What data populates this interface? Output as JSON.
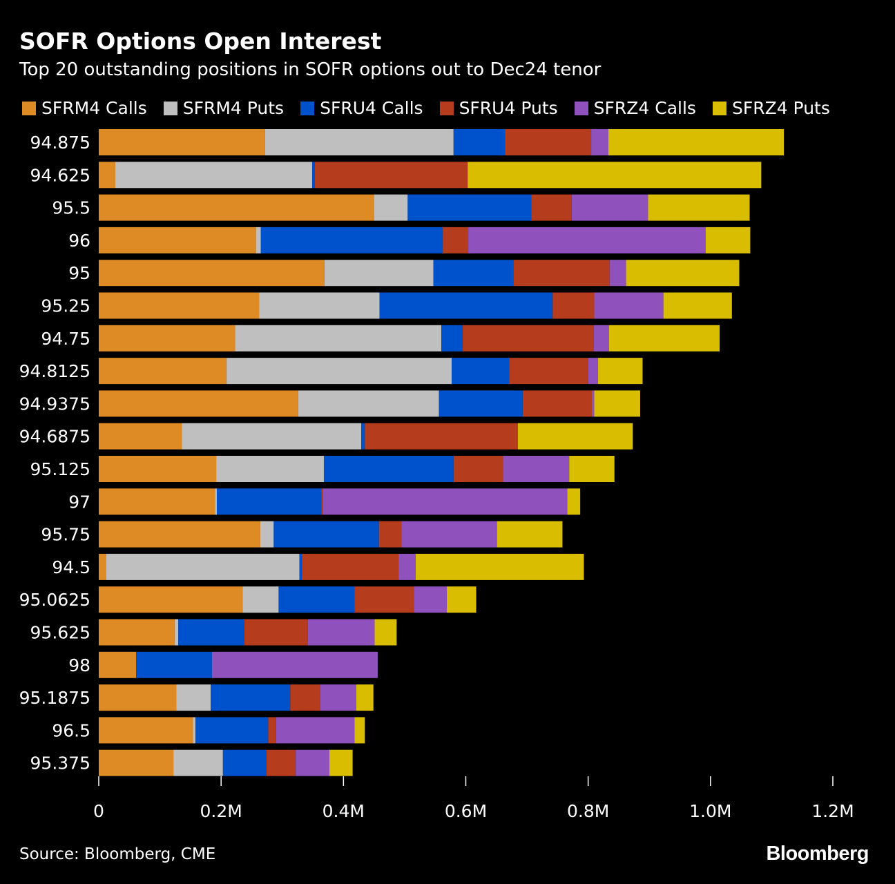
{
  "chart_data": {
    "type": "bar",
    "orientation": "horizontal",
    "stacked": true,
    "title": "SOFR Options Open Interest",
    "subtitle": "Top 20 outstanding positions in SOFR options out to Dec24 tenor",
    "categories": [
      "94.875",
      "94.625",
      "95.5",
      "96",
      "95",
      "95.25",
      "94.75",
      "94.8125",
      "94.9375",
      "94.6875",
      "95.125",
      "97",
      "95.75",
      "94.5",
      "95.0625",
      "95.625",
      "98",
      "95.1875",
      "96.5",
      "95.375"
    ],
    "series": [
      {
        "name": "SFRM4 Calls",
        "color": "#DE8A25",
        "values": [
          272000,
          27000,
          450000,
          257000,
          369000,
          262000,
          223000,
          209000,
          326000,
          136000,
          192000,
          190000,
          264000,
          12000,
          235000,
          124000,
          61000,
          127000,
          154000,
          122000
        ]
      },
      {
        "name": "SFRM4 Puts",
        "color": "#BFBFBF",
        "values": [
          308000,
          322000,
          55000,
          8000,
          178000,
          197000,
          337000,
          368000,
          230000,
          293000,
          176000,
          3000,
          22000,
          316000,
          59000,
          6000,
          0,
          56000,
          4000,
          81000
        ]
      },
      {
        "name": "SFRU4 Calls",
        "color": "#0052CC",
        "values": [
          84000,
          4000,
          202000,
          297000,
          131000,
          283000,
          35000,
          94000,
          137000,
          6000,
          212000,
          171000,
          172000,
          4000,
          124000,
          108000,
          124000,
          130000,
          119000,
          71000
        ]
      },
      {
        "name": "SFRU4 Puts",
        "color": "#B53D1E",
        "values": [
          141000,
          250000,
          66000,
          42000,
          157000,
          68000,
          214000,
          129000,
          113000,
          250000,
          81000,
          2000,
          37000,
          158000,
          97000,
          104000,
          0,
          49000,
          13000,
          48000
        ]
      },
      {
        "name": "SFRZ4 Calls",
        "color": "#8F52BD",
        "values": [
          28000,
          0,
          125000,
          388000,
          27000,
          113000,
          25000,
          16000,
          4000,
          0,
          108000,
          400000,
          156000,
          28000,
          54000,
          109000,
          271000,
          59000,
          128000,
          55000
        ]
      },
      {
        "name": "SFRZ4 Puts",
        "color": "#D8BD00",
        "values": [
          287000,
          480000,
          166000,
          73000,
          185000,
          112000,
          181000,
          73000,
          75000,
          188000,
          74000,
          21000,
          107000,
          275000,
          48000,
          36000,
          0,
          28000,
          17000,
          38000
        ]
      }
    ],
    "xlim": [
      0,
      1200000
    ],
    "xticks": [
      {
        "value": 0,
        "label": "0"
      },
      {
        "value": 200000,
        "label": "0.2M"
      },
      {
        "value": 400000,
        "label": "0.4M"
      },
      {
        "value": 600000,
        "label": "0.6M"
      },
      {
        "value": 800000,
        "label": "0.8M"
      },
      {
        "value": 1000000,
        "label": "1.0M"
      },
      {
        "value": 1200000,
        "label": "1.2M"
      }
    ],
    "legend_position": "top",
    "source": "Source: Bloomberg, CME",
    "brand": "Bloomberg"
  }
}
